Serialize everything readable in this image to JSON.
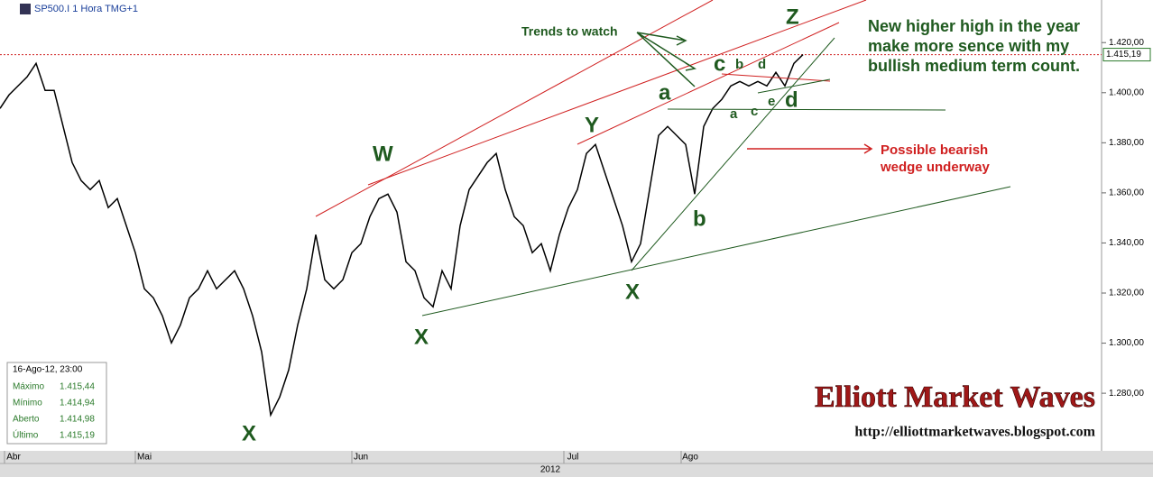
{
  "header": {
    "symbol": "SP500.I 1 Hora TMG+1"
  },
  "chart_data": {
    "type": "line",
    "series": [
      {
        "name": "SP500.I",
        "color": "#000000",
        "values": [
          1393.7,
          1399.1,
          1402.7,
          1406.3,
          1411.7,
          1400.9,
          1400.9,
          1386.5,
          1372.1,
          1364.9,
          1361.3,
          1364.9,
          1354.1,
          1357.7,
          1346.9,
          1336.1,
          1321.7,
          1318.1,
          1310.9,
          1300.1,
          1307.3,
          1318.1,
          1321.7,
          1328.9,
          1321.7,
          1325.3,
          1328.9,
          1321.7,
          1310.9,
          1296.5,
          1271.3,
          1278.5,
          1289.3,
          1307.3,
          1321.7,
          1343.3,
          1325.3,
          1321.7,
          1325.3,
          1336.1,
          1339.7,
          1350.5,
          1357.7,
          1359.5,
          1352.3,
          1332.5,
          1328.9,
          1318.1,
          1314.5,
          1328.9,
          1321.7,
          1346.9,
          1361.3,
          1366.7,
          1372.1,
          1375.7,
          1361.3,
          1350.5,
          1346.9,
          1336.1,
          1339.7,
          1328.9,
          1343.3,
          1354.1,
          1361.3,
          1375.7,
          1379.3,
          1368.5,
          1357.7,
          1346.9,
          1332.5,
          1339.7,
          1361.3,
          1382.9,
          1386.5,
          1382.9,
          1379.3,
          1359.5,
          1386.5,
          1393.7,
          1397.3,
          1402.7,
          1404.5,
          1402.7,
          1404.5,
          1402.7,
          1408.1,
          1402.7,
          1411.7,
          1415.19
        ]
      }
    ],
    "ylim": [
      1257,
      1437
    ],
    "yticks": [
      {
        "value": 1280,
        "label": "1.280,00"
      },
      {
        "value": 1300,
        "label": "1.300,00"
      },
      {
        "value": 1320,
        "label": "1.320,00"
      },
      {
        "value": 1340,
        "label": "1.340,00"
      },
      {
        "value": 1360,
        "label": "1.360,00"
      },
      {
        "value": 1380,
        "label": "1.380,00"
      },
      {
        "value": 1400,
        "label": "1.400,00"
      },
      {
        "value": 1420,
        "label": "1.420,00"
      }
    ],
    "xticks": [
      {
        "value": 1.5,
        "label": "Abr"
      },
      {
        "value": 16,
        "label": "Mai"
      },
      {
        "value": 40,
        "label": "Jun"
      },
      {
        "value": 63.5,
        "label": "Jul"
      },
      {
        "value": 76.5,
        "label": "Ago"
      }
    ],
    "x_label": "2012",
    "last_price": {
      "value": 1415.19,
      "label": "1.415,19"
    },
    "annotations": {
      "trends": "Trends to watch",
      "note": "New higher high in the year make more sence with my bullish medium term count.",
      "wedge": "Possible bearish wedge underway",
      "waves": [
        "X",
        "W",
        "X",
        "Y",
        "X",
        "a",
        "b",
        "c",
        "b",
        "d",
        "Z",
        "a",
        "c",
        "e",
        "d"
      ]
    }
  },
  "info_box": {
    "date": "16-Ago-12, 23:00",
    "rows": [
      [
        "Máximo",
        "1.415,44"
      ],
      [
        "Mínimo",
        "1.414,94"
      ],
      [
        "Aberto",
        "1.414,98"
      ],
      [
        "Último",
        "1.415,19"
      ]
    ]
  },
  "watermark": {
    "title": "Elliott Market Waves",
    "url": "http://elliottmarketwaves.blogspot.com"
  }
}
